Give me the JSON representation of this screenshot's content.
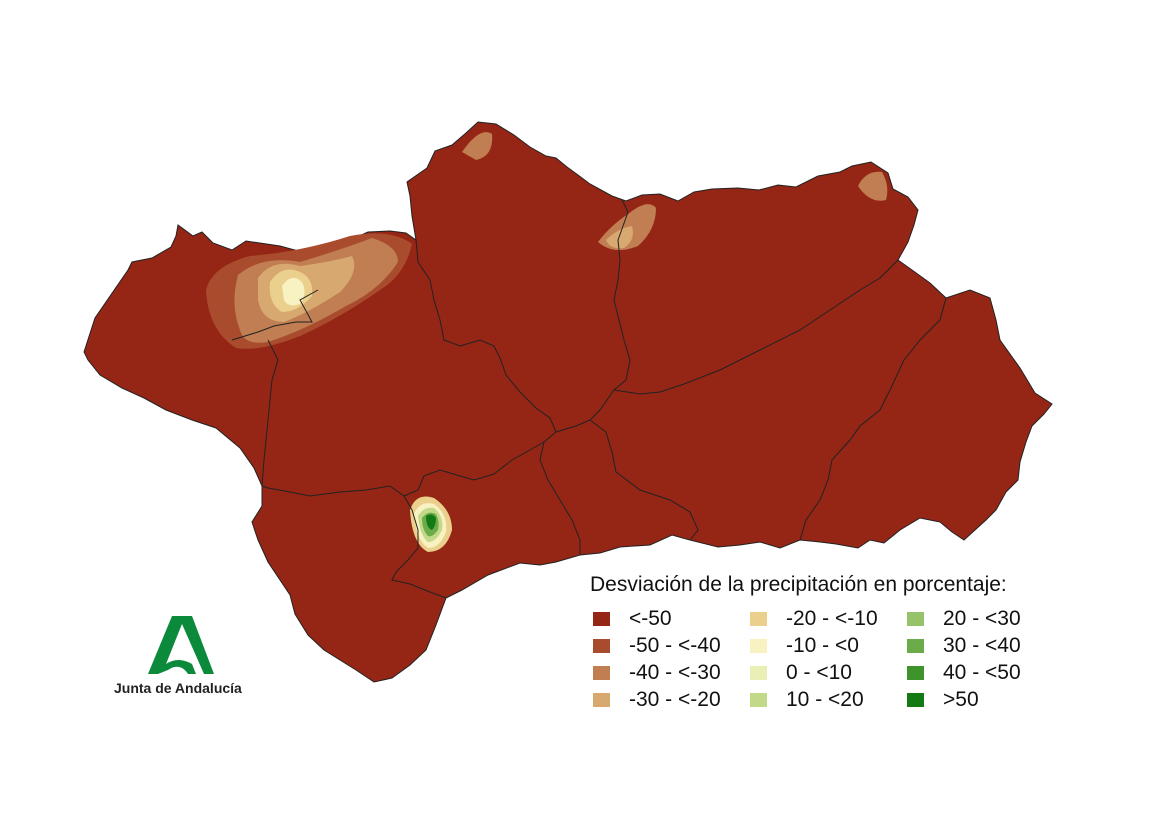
{
  "legend": {
    "title": "Desviación de la precipitación en porcentaje:",
    "items": [
      {
        "label": "<-50",
        "color": "#952616"
      },
      {
        "label": "-50 - <-40",
        "color": "#a94c2d"
      },
      {
        "label": "-40 - <-30",
        "color": "#c07e52"
      },
      {
        "label": "-30 - <-20",
        "color": "#d7a870"
      },
      {
        "label": "-20 - <-10",
        "color": "#ebd08d"
      },
      {
        "label": "-10 - <0",
        "color": "#f8f2c2"
      },
      {
        "label": "0 - <10",
        "color": "#e9efb5"
      },
      {
        "label": "10 - <20",
        "color": "#c3d98a"
      },
      {
        "label": "20 - <30",
        "color": "#96c36a"
      },
      {
        "label": "30 - <40",
        "color": "#6cab4a"
      },
      {
        "label": "40 - <50",
        "color": "#3f932d"
      },
      {
        "label": ">50",
        "color": "#147a14"
      }
    ]
  },
  "logo": {
    "text": "Junta de Andalucía",
    "color": "#0b8a3c"
  }
}
